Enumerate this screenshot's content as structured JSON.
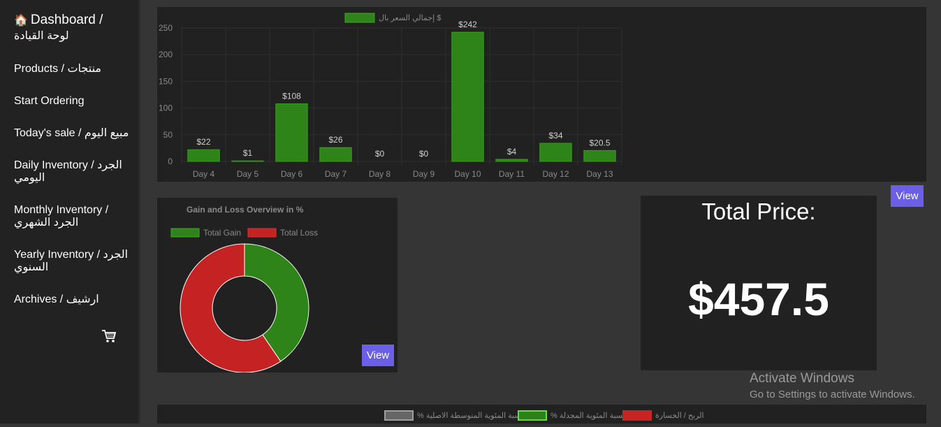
{
  "sidebar": {
    "title_icon": "house-icon",
    "title": "Dashboard /",
    "title_ar": "لوحة القيادة",
    "items": [
      {
        "label": "Products / منتجات"
      },
      {
        "label": "Start Ordering"
      },
      {
        "label": "Today's sale / مبيع اليوم"
      },
      {
        "label": "Daily Inventory / الجرد اليومي"
      },
      {
        "label": "Monthly Inventory / الجرد الشهري"
      },
      {
        "label": "Yearly Inventory / الجرد السنوي"
      },
      {
        "label": "Archives / ارشيف"
      }
    ],
    "cart_icon": "cart-icon"
  },
  "bar_panel": {
    "view_label": "View"
  },
  "donut_panel": {
    "view_label": "View"
  },
  "total_panel": {
    "label": "Total Price:",
    "value": "$457.5"
  },
  "bottom_legend": [
    {
      "label": "% النسبة المئوية المتوسطة الاصلية",
      "color": "#666666",
      "border": "#9e9e9e"
    },
    {
      "label": "% النسبة المئوية المجدلة",
      "color": "#2f7f1b",
      "border": "#61e22d"
    },
    {
      "label": "الربح / الخسارة",
      "color": "#c72424",
      "border": "#c72424"
    }
  ],
  "watermark": {
    "line1": "Activate Windows",
    "line2": "Go to Settings to activate Windows."
  },
  "colors": {
    "green": "#2f8419",
    "red": "#c52323",
    "button": "#6a5fe6",
    "panel": "#212121",
    "background": "#353535"
  },
  "chart_data": [
    {
      "type": "bar",
      "legend": "إجمالي السعر بال $",
      "categories": [
        "Day 4",
        "Day 5",
        "Day 6",
        "Day 7",
        "Day 8",
        "Day 9",
        "Day 10",
        "Day 11",
        "Day 12",
        "Day 13"
      ],
      "values": [
        22,
        1,
        108,
        26,
        0,
        0,
        242,
        4,
        34,
        20.5
      ],
      "data_labels": [
        "$22",
        "$1",
        "$108",
        "$26",
        "$0",
        "$0",
        "$242",
        "$4",
        "$34",
        "$20.5"
      ],
      "yticks": [
        0,
        50,
        100,
        150,
        200,
        250
      ],
      "ylim": [
        0,
        250
      ],
      "grid": true,
      "color": "#2f8419"
    },
    {
      "type": "pie",
      "title": "Gain and Loss Overview in %",
      "labels": [
        "Total Gain",
        "Total Loss"
      ],
      "values": [
        40.5,
        59.5
      ],
      "colors": [
        "#2f8419",
        "#c52323"
      ],
      "donut": true,
      "legend_position": "top"
    }
  ]
}
